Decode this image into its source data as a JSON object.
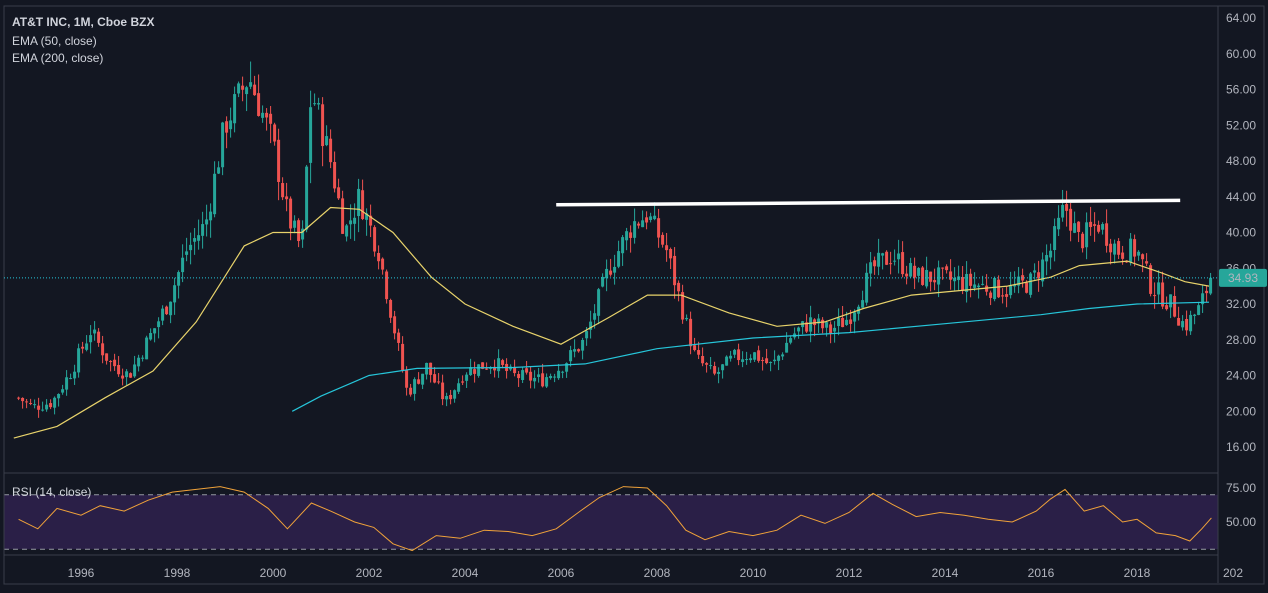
{
  "legend": {
    "title": "AT&T INC, 1M, Cboe BZX",
    "ema50": "EMA (50, close)",
    "ema200": "EMA (200, close)",
    "rsi": "RSI (14, close)"
  },
  "price_label": "34.93",
  "colors": {
    "background": "#131722",
    "up": "#26a69a",
    "down": "#ef5350",
    "ema50": "#e8d36b",
    "ema200": "#26c6da",
    "rsi_line": "#f0a23a",
    "rsi_band": "#2a1f47",
    "price_tag": "#26a69a",
    "trendline": "#ffffff"
  },
  "chart_data": [
    {
      "type": "candlestick",
      "title": "AT&T INC, 1M, Cboe BZX",
      "x_ticks": [
        "1996",
        "1998",
        "2000",
        "2002",
        "2004",
        "2006",
        "2008",
        "2010",
        "2012",
        "2014",
        "2016",
        "2018",
        "202"
      ],
      "y_ticks": [
        "64.00",
        "60.00",
        "56.00",
        "52.00",
        "48.00",
        "44.00",
        "40.00",
        "36.00",
        "32.00",
        "28.00",
        "24.00",
        "20.00",
        "16.00"
      ],
      "ylim": [
        12.5,
        65.3
      ],
      "xlim": [
        1994.6,
        2019.7
      ],
      "last_price": 34.93,
      "close_path": [
        [
          1994.7,
          21.5
        ],
        [
          1995.0,
          20.5
        ],
        [
          1995.4,
          21.0
        ],
        [
          1995.8,
          24.5
        ],
        [
          1996.2,
          29.0
        ],
        [
          1996.6,
          25.5
        ],
        [
          1997.0,
          24.0
        ],
        [
          1997.4,
          28.0
        ],
        [
          1997.8,
          32.0
        ],
        [
          1998.2,
          38.0
        ],
        [
          1998.6,
          41.0
        ],
        [
          1999.0,
          52.0
        ],
        [
          1999.5,
          57.5
        ],
        [
          2000.0,
          50.0
        ],
        [
          2000.3,
          42.0
        ],
        [
          2000.6,
          38.0
        ],
        [
          2000.8,
          56.0
        ],
        [
          2001.2,
          48.0
        ],
        [
          2001.5,
          40.0
        ],
        [
          2001.8,
          44.0
        ],
        [
          2002.2,
          38.0
        ],
        [
          2002.5,
          30.0
        ],
        [
          2002.8,
          22.0
        ],
        [
          2003.2,
          25.0
        ],
        [
          2003.6,
          21.0
        ],
        [
          2004.0,
          24.5
        ],
        [
          2004.6,
          25.5
        ],
        [
          2005.0,
          24.0
        ],
        [
          2005.6,
          23.5
        ],
        [
          2006.0,
          25.0
        ],
        [
          2006.5,
          28.0
        ],
        [
          2007.0,
          36.0
        ],
        [
          2007.5,
          41.0
        ],
        [
          2007.8,
          42.0
        ],
        [
          2008.2,
          38.0
        ],
        [
          2008.5,
          32.0
        ],
        [
          2008.8,
          26.0
        ],
        [
          2009.2,
          24.0
        ],
        [
          2009.6,
          26.0
        ],
        [
          2010.0,
          26.5
        ],
        [
          2010.4,
          25.0
        ],
        [
          2010.8,
          28.5
        ],
        [
          2011.2,
          30.0
        ],
        [
          2011.6,
          29.0
        ],
        [
          2012.0,
          30.5
        ],
        [
          2012.5,
          36.0
        ],
        [
          2012.9,
          37.5
        ],
        [
          2013.4,
          35.0
        ],
        [
          2013.8,
          35.0
        ],
        [
          2014.3,
          34.5
        ],
        [
          2014.8,
          34.0
        ],
        [
          2015.3,
          33.5
        ],
        [
          2015.8,
          34.5
        ],
        [
          2016.2,
          38.0
        ],
        [
          2016.5,
          43.0
        ],
        [
          2016.8,
          39.0
        ],
        [
          2017.2,
          41.0
        ],
        [
          2017.6,
          38.0
        ],
        [
          2018.0,
          38.0
        ],
        [
          2018.3,
          34.0
        ],
        [
          2018.7,
          32.0
        ],
        [
          2019.0,
          29.5
        ],
        [
          2019.3,
          31.5
        ],
        [
          2019.55,
          34.93
        ]
      ],
      "ema50": {
        "name": "EMA (50, close)",
        "points": [
          [
            1994.6,
            17.0
          ],
          [
            1995.5,
            18.3
          ],
          [
            1996.5,
            21.5
          ],
          [
            1997.5,
            24.5
          ],
          [
            1998.4,
            30.0
          ],
          [
            1999.4,
            38.5
          ],
          [
            2000.0,
            40.0
          ],
          [
            2000.6,
            40.0
          ],
          [
            2001.2,
            42.8
          ],
          [
            2001.8,
            42.6
          ],
          [
            2002.5,
            40.0
          ],
          [
            2003.3,
            35.0
          ],
          [
            2004.0,
            32.0
          ],
          [
            2005.0,
            29.5
          ],
          [
            2006.0,
            27.5
          ],
          [
            2007.0,
            30.5
          ],
          [
            2007.8,
            33.0
          ],
          [
            2008.5,
            33.0
          ],
          [
            2009.5,
            31.0
          ],
          [
            2010.5,
            29.5
          ],
          [
            2011.5,
            30.0
          ],
          [
            2012.3,
            31.5
          ],
          [
            2013.3,
            33.0
          ],
          [
            2014.3,
            33.5
          ],
          [
            2015.3,
            34.0
          ],
          [
            2016.2,
            35.0
          ],
          [
            2016.8,
            36.3
          ],
          [
            2017.8,
            36.8
          ],
          [
            2018.5,
            35.5
          ],
          [
            2019.0,
            34.5
          ],
          [
            2019.5,
            34.0
          ]
        ]
      },
      "ema200": {
        "name": "EMA (200, close)",
        "points": [
          [
            2000.4,
            20.0
          ],
          [
            2001.0,
            21.7
          ],
          [
            2002.0,
            24.0
          ],
          [
            2003.0,
            24.8
          ],
          [
            2005.0,
            24.9
          ],
          [
            2006.5,
            25.3
          ],
          [
            2008.0,
            27.0
          ],
          [
            2010.0,
            28.2
          ],
          [
            2012.0,
            28.8
          ],
          [
            2014.0,
            29.8
          ],
          [
            2016.0,
            30.8
          ],
          [
            2017.0,
            31.5
          ],
          [
            2018.0,
            32.0
          ],
          [
            2019.5,
            32.2
          ]
        ]
      },
      "trendline": {
        "from": [
          2005.9,
          43.1
        ],
        "to": [
          2018.9,
          43.6
        ]
      }
    },
    {
      "type": "line",
      "title": "RSI (14, close)",
      "ylim": [
        0,
        100
      ],
      "y_ticks": [
        "75.00",
        "50.00"
      ],
      "bands": [
        70,
        30
      ],
      "points": [
        [
          1994.7,
          52
        ],
        [
          1995.1,
          45
        ],
        [
          1995.5,
          60
        ],
        [
          1996.0,
          55
        ],
        [
          1996.4,
          62
        ],
        [
          1996.9,
          58
        ],
        [
          1997.4,
          66
        ],
        [
          1997.9,
          72
        ],
        [
          1998.4,
          74
        ],
        [
          1998.9,
          76
        ],
        [
          1999.4,
          72
        ],
        [
          1999.9,
          60
        ],
        [
          2000.3,
          45
        ],
        [
          2000.8,
          64
        ],
        [
          2001.2,
          58
        ],
        [
          2001.7,
          50
        ],
        [
          2002.1,
          46
        ],
        [
          2002.5,
          34
        ],
        [
          2002.9,
          29
        ],
        [
          2003.4,
          40
        ],
        [
          2003.9,
          38
        ],
        [
          2004.4,
          44
        ],
        [
          2004.9,
          43
        ],
        [
          2005.4,
          40
        ],
        [
          2005.9,
          45
        ],
        [
          2006.4,
          58
        ],
        [
          2006.8,
          68
        ],
        [
          2007.3,
          76
        ],
        [
          2007.8,
          75
        ],
        [
          2008.2,
          62
        ],
        [
          2008.6,
          44
        ],
        [
          2009.0,
          37
        ],
        [
          2009.5,
          43
        ],
        [
          2010.0,
          40
        ],
        [
          2010.5,
          44
        ],
        [
          2011.0,
          55
        ],
        [
          2011.5,
          49
        ],
        [
          2012.0,
          57
        ],
        [
          2012.5,
          71
        ],
        [
          2012.9,
          63
        ],
        [
          2013.4,
          54
        ],
        [
          2013.9,
          57
        ],
        [
          2014.4,
          55
        ],
        [
          2014.9,
          52
        ],
        [
          2015.4,
          50
        ],
        [
          2015.9,
          58
        ],
        [
          2016.2,
          67
        ],
        [
          2016.5,
          74
        ],
        [
          2016.9,
          58
        ],
        [
          2017.3,
          62
        ],
        [
          2017.7,
          50
        ],
        [
          2018.0,
          52
        ],
        [
          2018.4,
          42
        ],
        [
          2018.8,
          40
        ],
        [
          2019.1,
          36
        ],
        [
          2019.35,
          45
        ],
        [
          2019.55,
          53
        ]
      ]
    }
  ]
}
